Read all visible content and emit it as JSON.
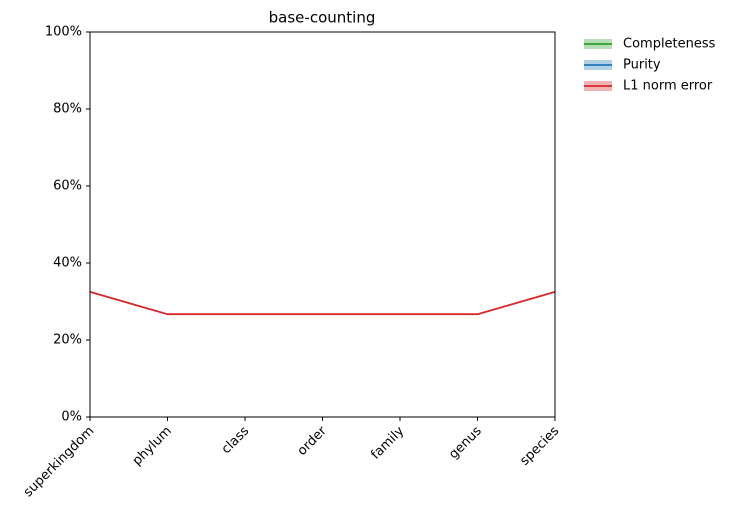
{
  "chart_data": {
    "type": "line",
    "title": "base-counting",
    "categories": [
      "superkingdom",
      "phylum",
      "class",
      "order",
      "family",
      "genus",
      "species"
    ],
    "series": [
      {
        "name": "Completeness",
        "color": "#2ca02c",
        "values": [
          null,
          null,
          null,
          null,
          null,
          null,
          null
        ]
      },
      {
        "name": "Purity",
        "color": "#1f77b4",
        "values": [
          null,
          null,
          null,
          null,
          null,
          null,
          null
        ]
      },
      {
        "name": "L1 norm error",
        "color": "#d62728",
        "values": [
          32.5,
          26.7,
          26.7,
          26.7,
          26.7,
          26.7,
          32.5
        ]
      }
    ],
    "ylim": [
      0,
      100
    ],
    "yticks": [
      {
        "value": 0,
        "label": "0%"
      },
      {
        "value": 20,
        "label": "20%"
      },
      {
        "value": 40,
        "label": "40%"
      },
      {
        "value": 60,
        "label": "60%"
      },
      {
        "value": 80,
        "label": "80%"
      },
      {
        "value": 100,
        "label": "100%"
      }
    ],
    "grid": false,
    "legend": "outside upper right"
  }
}
